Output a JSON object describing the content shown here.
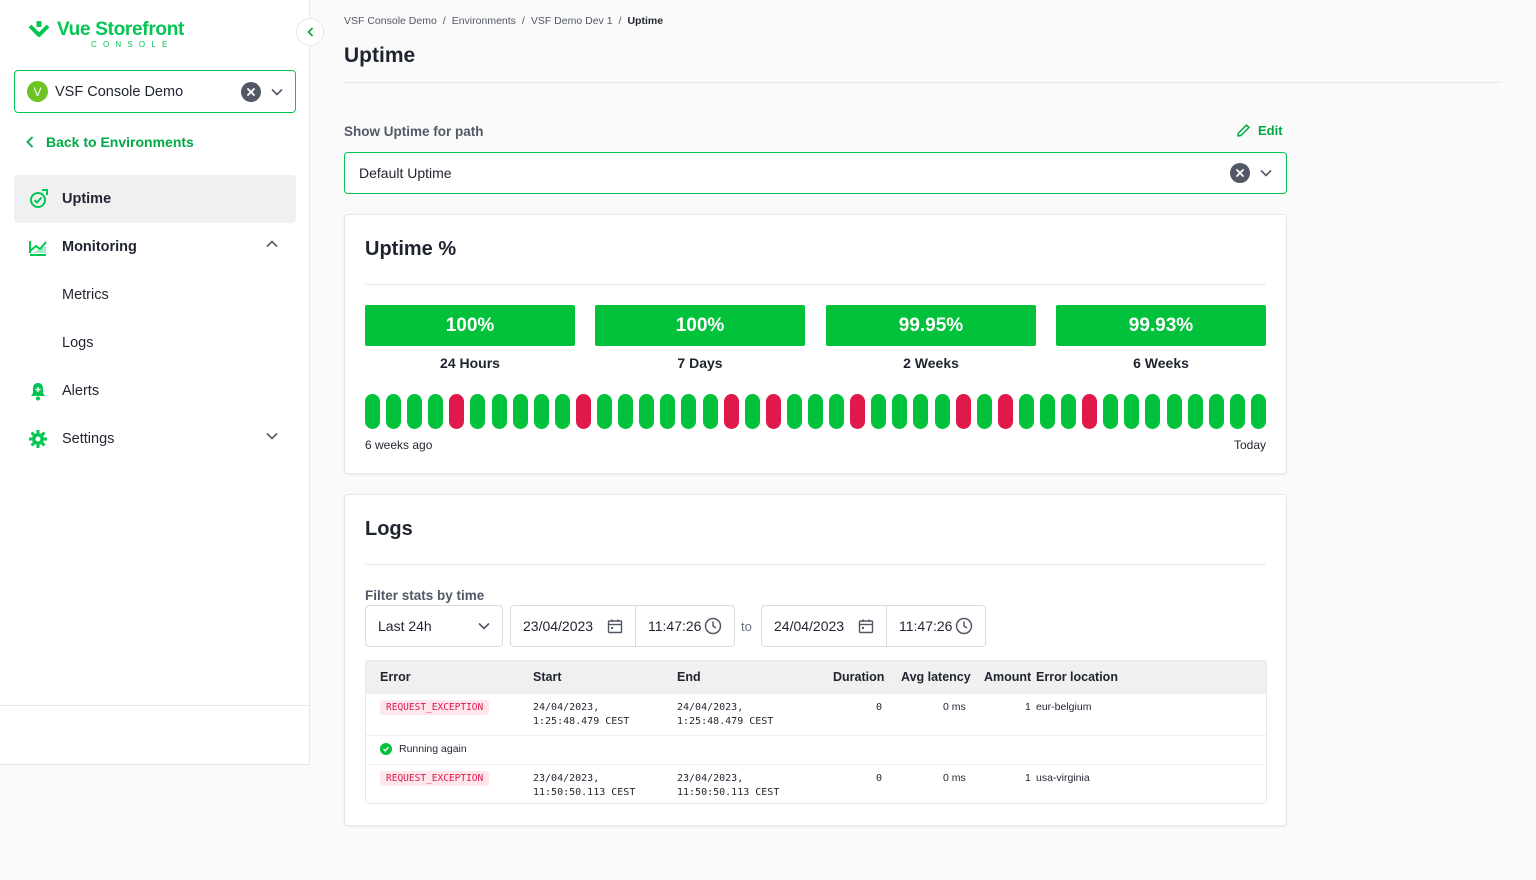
{
  "brand": {
    "name": "Vue Storefront",
    "sub": "CONSOLE",
    "color": "#02c652"
  },
  "sidebar": {
    "org": {
      "avatar": "V",
      "name": "VSF Console Demo"
    },
    "back_label": "Back to Environments",
    "items": [
      {
        "label": "Uptime",
        "icon": "uptime-icon",
        "active": true
      },
      {
        "label": "Monitoring",
        "icon": "monitoring-icon",
        "expanded": true,
        "children": [
          "Metrics",
          "Logs"
        ]
      },
      {
        "label": "Alerts",
        "icon": "bell-icon"
      },
      {
        "label": "Settings",
        "icon": "gear-icon",
        "expanded": false
      }
    ]
  },
  "breadcrumb": [
    "VSF Console Demo",
    "Environments",
    "VSF Demo Dev 1",
    "Uptime"
  ],
  "page_title": "Uptime",
  "path_filter": {
    "label": "Show Uptime for path",
    "edit_label": "Edit",
    "value": "Default Uptime"
  },
  "uptime": {
    "title": "Uptime %",
    "stats": [
      {
        "value": "100%",
        "label": "24 Hours"
      },
      {
        "value": "100%",
        "label": "7 Days"
      },
      {
        "value": "99.95%",
        "label": "2 Weeks"
      },
      {
        "value": "99.93%",
        "label": "6 Weeks"
      }
    ],
    "timeline": [
      "up",
      "up",
      "up",
      "up",
      "down",
      "up",
      "up",
      "up",
      "up",
      "up",
      "down",
      "up",
      "up",
      "up",
      "up",
      "up",
      "up",
      "down",
      "up",
      "down",
      "up",
      "up",
      "up",
      "down",
      "up",
      "up",
      "up",
      "up",
      "down",
      "up",
      "down",
      "up",
      "up",
      "up",
      "down",
      "up",
      "up",
      "up",
      "up",
      "up",
      "up",
      "up",
      "up"
    ],
    "colors": {
      "up": "#02c13a",
      "down": "#e0194b"
    },
    "start_label": "6 weeks ago",
    "end_label": "Today"
  },
  "logs": {
    "title": "Logs",
    "filter_label": "Filter stats by time",
    "range": "Last 24h",
    "from_date": "23/04/2023",
    "from_time": "11:47:26",
    "to_label": "to",
    "to_date": "24/04/2023",
    "to_time": "11:47:26",
    "columns": [
      "Error",
      "Start",
      "End",
      "Duration",
      "Avg latency",
      "Amount",
      "Error location"
    ],
    "rows": [
      {
        "error": "REQUEST_EXCEPTION",
        "start": [
          "24/04/2023,",
          "1:25:48.479 CEST"
        ],
        "end": [
          "24/04/2023,",
          "1:25:48.479 CEST"
        ],
        "duration": "0",
        "latency": "0 ms",
        "amount": "1",
        "location": "eur-belgium"
      },
      {
        "status": "Running again"
      },
      {
        "error": "REQUEST_EXCEPTION",
        "start": [
          "23/04/2023,",
          "11:50:50.113 CEST"
        ],
        "end": [
          "23/04/2023,",
          "11:50:50.113 CEST"
        ],
        "duration": "0",
        "latency": "0 ms",
        "amount": "1",
        "location": "usa-virginia"
      }
    ]
  }
}
